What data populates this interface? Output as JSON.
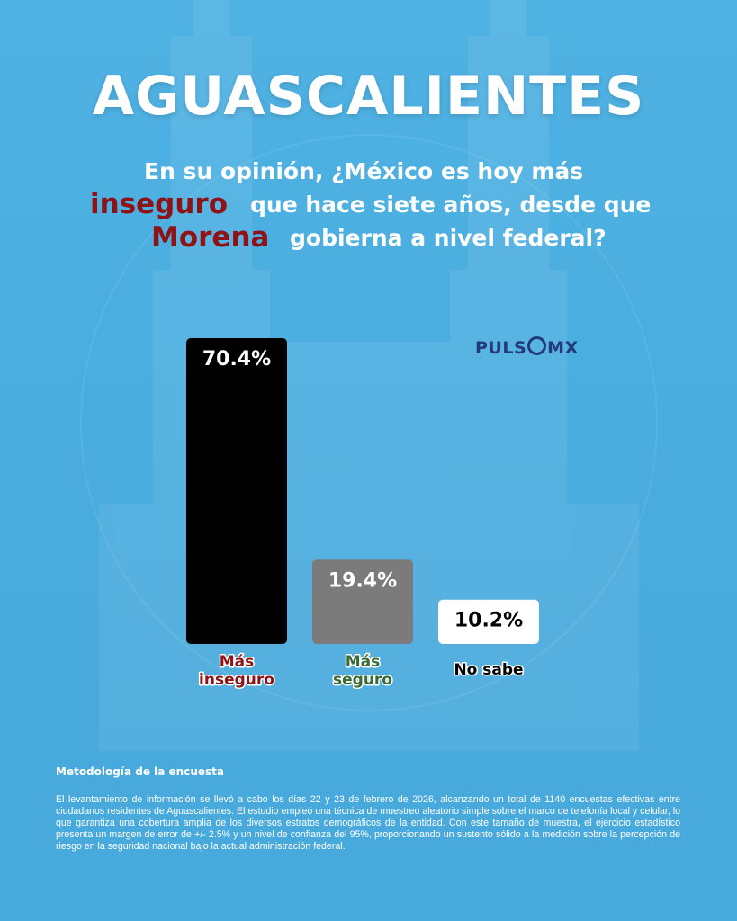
{
  "title": "AGUASCALIENTES",
  "question": {
    "line1": "En su opinión, ¿México es hoy más",
    "line2_emphasis": "inseguro",
    "line2_rest": "que hace siete años, desde que",
    "line3_emphasis": "Morena",
    "line3_rest": "gobierna a nivel federal?"
  },
  "logo": {
    "text_left": "PULS",
    "text_right": "MX"
  },
  "chart_data": {
    "type": "bar",
    "categories": [
      "Más inseguro",
      "Más seguro",
      "No sabe"
    ],
    "category_lines": [
      [
        "Más",
        "inseguro"
      ],
      [
        "Más",
        "seguro"
      ],
      [
        "No sabe"
      ]
    ],
    "values": [
      70.4,
      19.4,
      10.2
    ],
    "value_labels": [
      "70.4%",
      "19.4%",
      "10.2%"
    ],
    "bar_colors": [
      "#000000",
      "#7b7b7b",
      "#ffffff"
    ],
    "value_label_colors": [
      "#ffffff",
      "#ffffff",
      "#000000"
    ],
    "category_label_colors": [
      "#8e1316",
      "#3b6b35",
      "#000000"
    ],
    "ylim": [
      0,
      100
    ],
    "grid": false
  },
  "methodology": {
    "title": "Metodología de la encuesta",
    "text": "El levantamiento de información se llevó a cabo los días 22 y 23 de febrero de 2026, alcanzando un total de 1140 encuestas efectivas entre ciudadanos residentes de Aguascalientes. El estudio empleó una técnica de muestreo aleatorio simple sobre el marco de telefonía local y celular, lo que garantiza una cobertura amplia de los diversos estratos demográficos de la entidad. Con este tamaño de muestra, el ejercicio estadístico presenta un margen de error de +/- 2.5% y un nivel de confianza del 95%, proporcionando un sustento sólido a la medición sobre la percepción de riesgo en la seguridad nacional bajo la actual administración federal."
  }
}
